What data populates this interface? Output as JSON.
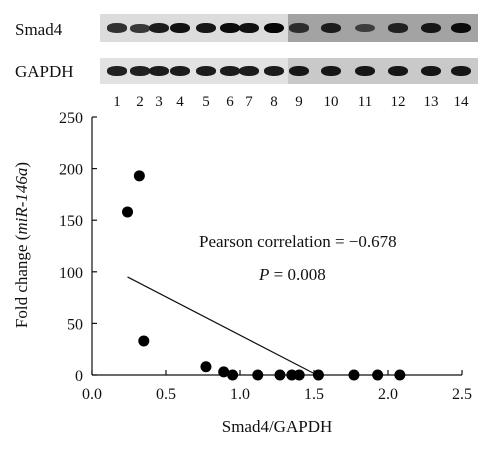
{
  "blot": {
    "label_top": "Smad4",
    "label_bottom": "GAPDH",
    "lanes": [
      "1",
      "2",
      "3",
      "4",
      "5",
      "6",
      "7",
      "8",
      "9",
      "10",
      "11",
      "12",
      "13",
      "14"
    ],
    "smad4_intensity": [
      0.55,
      0.5,
      0.75,
      0.85,
      0.8,
      0.9,
      0.85,
      0.95,
      0.6,
      0.75,
      0.45,
      0.7,
      0.8,
      0.9
    ],
    "gapdh_intensity": [
      0.7,
      0.7,
      0.75,
      0.75,
      0.75,
      0.75,
      0.75,
      0.75,
      0.8,
      0.8,
      0.8,
      0.8,
      0.8,
      0.8
    ]
  },
  "chart_data": {
    "type": "scatter",
    "xlabel": "Smad4/GAPDH",
    "ylabel_prefix": "Fold change (",
    "ylabel_gene": "miR-146a",
    "ylabel_suffix": ")",
    "xlim": [
      0,
      2.5
    ],
    "ylim": [
      0,
      250
    ],
    "xticks": [
      "0.0",
      "0.5",
      "1.0",
      "1.5",
      "2.0",
      "2.5"
    ],
    "yticks": [
      "0",
      "50",
      "100",
      "150",
      "200",
      "250"
    ],
    "grid": false,
    "legend": "none",
    "points": [
      {
        "x": 0.24,
        "y": 158
      },
      {
        "x": 0.32,
        "y": 193
      },
      {
        "x": 0.35,
        "y": 33
      },
      {
        "x": 0.77,
        "y": 8
      },
      {
        "x": 0.89,
        "y": 3
      },
      {
        "x": 0.95,
        "y": 0
      },
      {
        "x": 1.12,
        "y": 0
      },
      {
        "x": 1.27,
        "y": 0
      },
      {
        "x": 1.35,
        "y": 0
      },
      {
        "x": 1.4,
        "y": 0
      },
      {
        "x": 1.53,
        "y": 0
      },
      {
        "x": 1.77,
        "y": 0
      },
      {
        "x": 1.93,
        "y": 0
      },
      {
        "x": 2.08,
        "y": 0
      }
    ],
    "regression_line": [
      {
        "x": 0.24,
        "y": 95
      },
      {
        "x": 1.52,
        "y": 0
      }
    ],
    "annotations": {
      "correlation": "Pearson correlation = −0.678",
      "p_symbol": "P",
      "p_rest": " = 0.008"
    }
  }
}
